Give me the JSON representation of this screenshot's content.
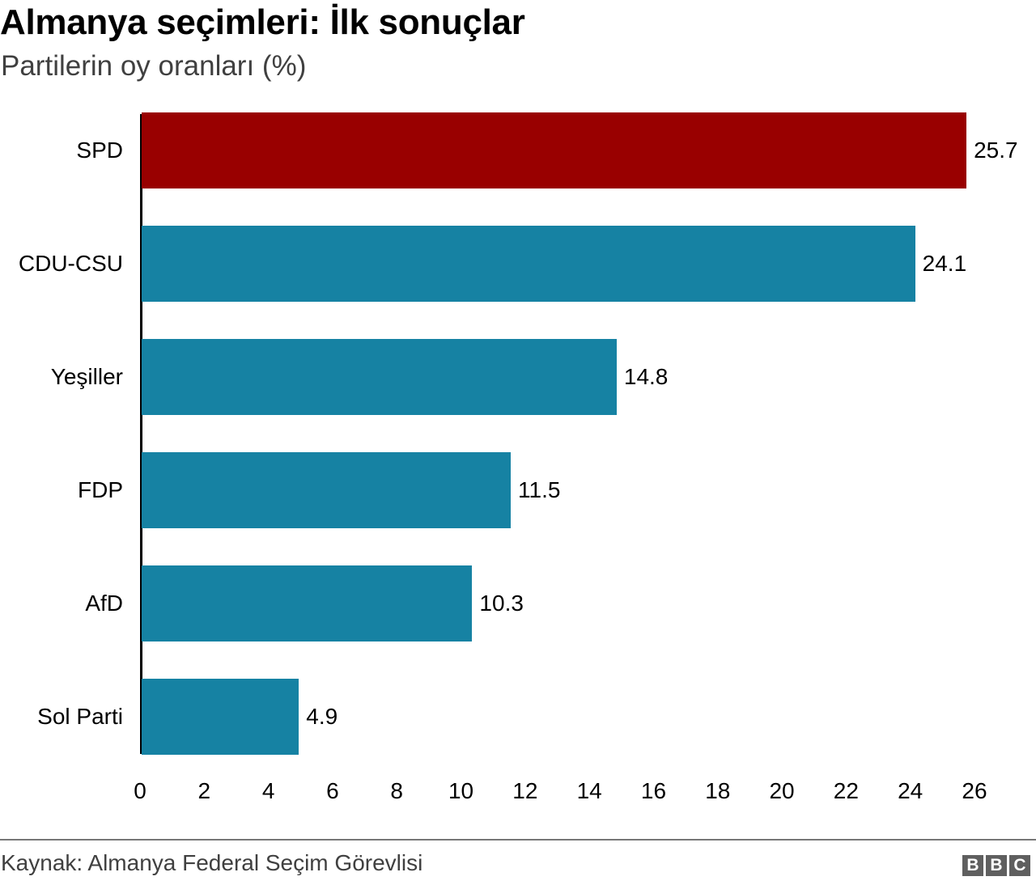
{
  "header": {
    "title": "Almanya seçimleri: İlk sonuçlar",
    "subtitle": "Partilerin oy oranları (%)"
  },
  "footer": {
    "source": "Kaynak: Almanya Federal Seçim Görevlisi",
    "logo": [
      "B",
      "B",
      "C"
    ]
  },
  "colors": {
    "highlight": "#990000",
    "default": "#1682a3"
  },
  "chart_data": {
    "type": "bar",
    "orientation": "horizontal",
    "title": "Almanya seçimleri: İlk sonuçlar",
    "subtitle": "Partilerin oy oranları (%)",
    "xlabel": "",
    "ylabel": "",
    "categories": [
      "SPD",
      "CDU-CSU",
      "Yeşiller",
      "FDP",
      "AfD",
      "Sol Parti"
    ],
    "values": [
      25.7,
      24.1,
      14.8,
      11.5,
      10.3,
      4.9
    ],
    "value_labels": [
      "25.7",
      "24.1",
      "14.8",
      "11.5",
      "10.3",
      "4.9"
    ],
    "bar_colors": [
      "#990000",
      "#1682a3",
      "#1682a3",
      "#1682a3",
      "#1682a3",
      "#1682a3"
    ],
    "xlim": [
      0,
      26
    ],
    "x_ticks": [
      "0",
      "2",
      "4",
      "6",
      "8",
      "10",
      "12",
      "14",
      "16",
      "18",
      "20",
      "22",
      "24",
      "26"
    ],
    "grid": false,
    "legend": null,
    "source": "Kaynak: Almanya Federal Seçim Görevlisi"
  }
}
